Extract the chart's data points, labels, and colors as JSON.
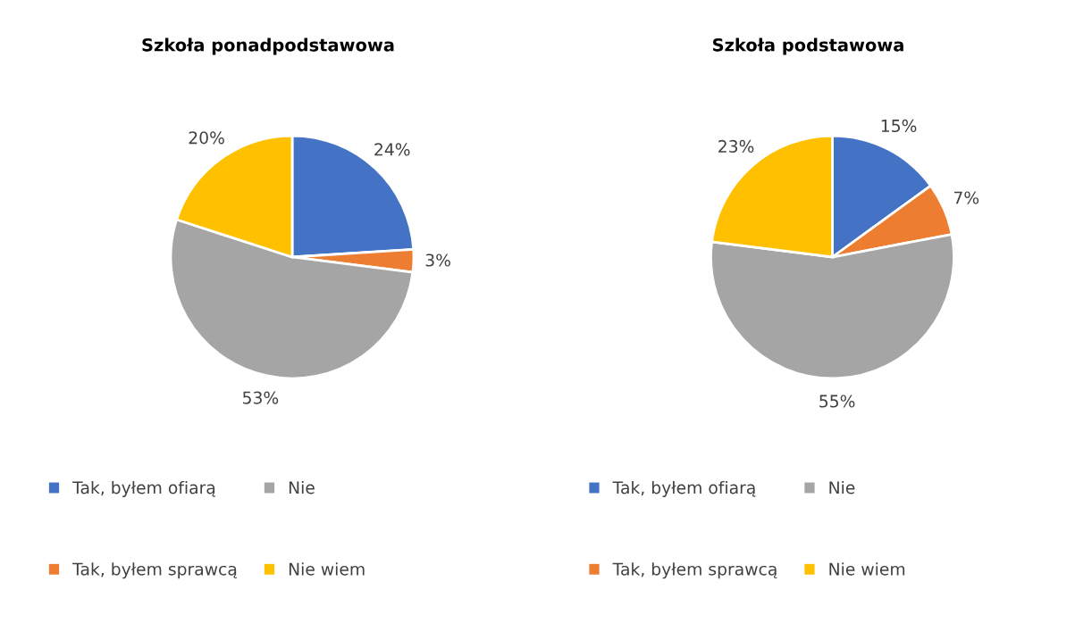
{
  "chart_data": [
    {
      "type": "pie",
      "title": "Szkoła ponadpodstawowa",
      "categories": [
        "Tak, byłem ofiarą",
        "Tak, byłem sprawcą",
        "Nie",
        "Nie wiem"
      ],
      "values": [
        24,
        3,
        53,
        20
      ],
      "value_labels": [
        "24%",
        "3%",
        "53%",
        "20%"
      ],
      "colors": [
        "#4472c4",
        "#ed7d31",
        "#a5a5a5",
        "#ffc000"
      ],
      "legend": "bottom"
    },
    {
      "type": "pie",
      "title": "Szkoła podstawowa",
      "categories": [
        "Tak, byłem ofiarą",
        "Tak, byłem sprawcą",
        "Nie",
        "Nie wiem"
      ],
      "values": [
        15,
        7,
        55,
        23
      ],
      "value_labels": [
        "15%",
        "7%",
        "55%",
        "23%"
      ],
      "colors": [
        "#4472c4",
        "#ed7d31",
        "#a5a5a5",
        "#ffc000"
      ],
      "legend": "bottom"
    }
  ]
}
